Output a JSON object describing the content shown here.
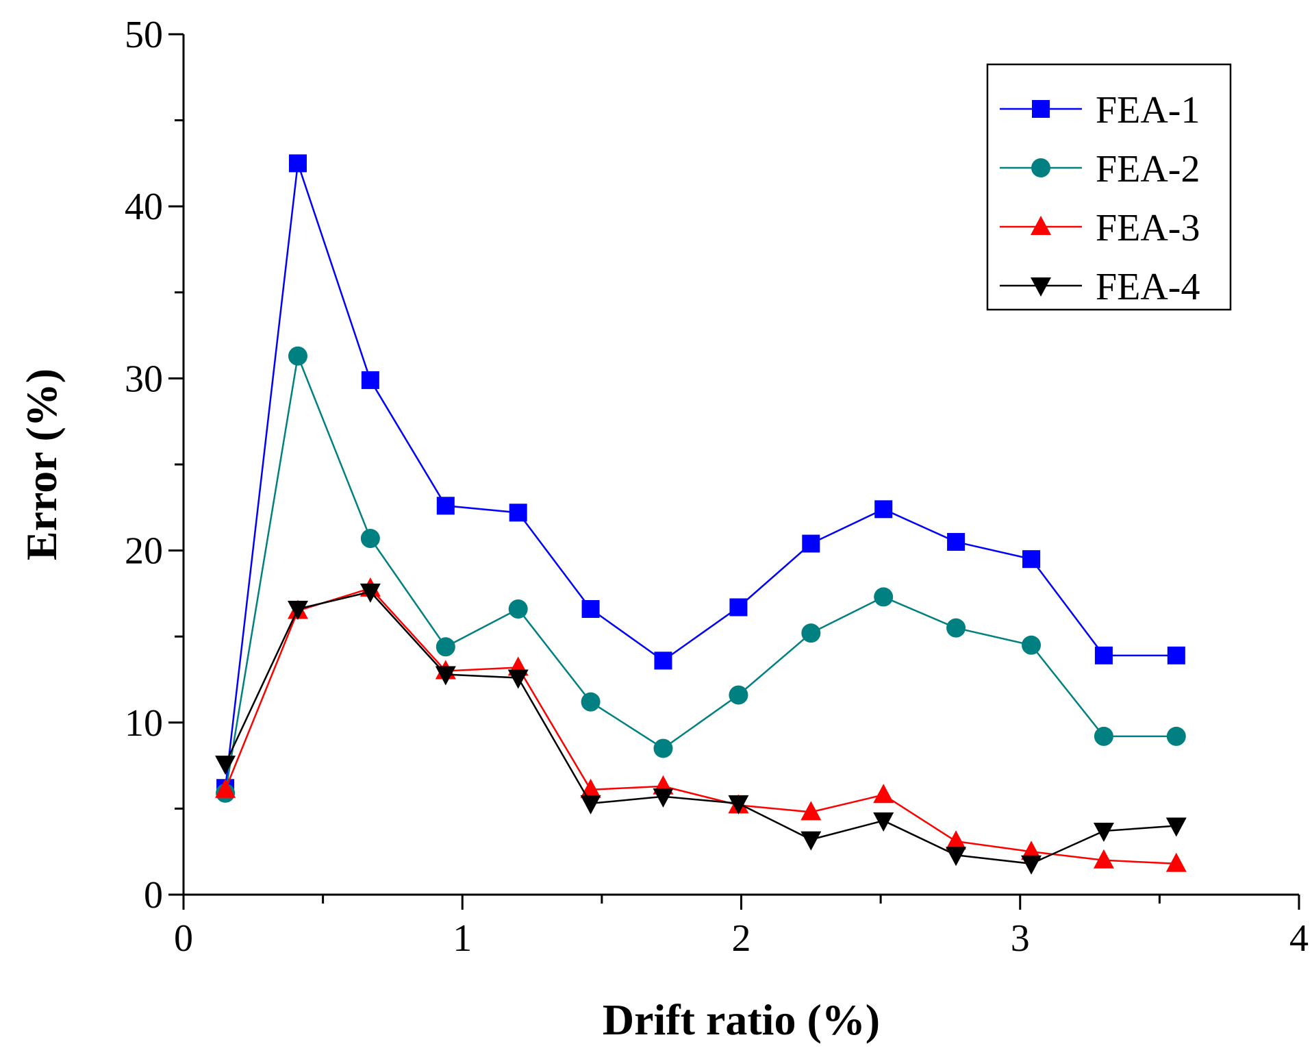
{
  "chart_data": {
    "type": "line",
    "title": "",
    "xlabel": "Drift ratio (%)",
    "ylabel": "Error (%)",
    "xlim": [
      0,
      4
    ],
    "ylim": [
      0,
      50
    ],
    "x_ticks": [
      0,
      1,
      2,
      3,
      4
    ],
    "y_ticks": [
      0,
      10,
      20,
      30,
      40,
      50
    ],
    "x_tick_labels": [
      "0",
      "1",
      "2",
      "3",
      "4"
    ],
    "y_tick_labels": [
      "0",
      "10",
      "20",
      "30",
      "40",
      "50"
    ],
    "grid": false,
    "legend_position": "top-right",
    "x": [
      0.15,
      0.41,
      0.67,
      0.94,
      1.2,
      1.46,
      1.72,
      1.99,
      2.25,
      2.51,
      2.77,
      3.04,
      3.3,
      3.56
    ],
    "series": [
      {
        "name": "FEA-1",
        "color": "#0000ff",
        "marker": "square",
        "values": [
          6.2,
          42.5,
          29.9,
          22.6,
          22.2,
          16.6,
          13.6,
          16.7,
          20.4,
          22.4,
          20.5,
          19.5,
          13.9,
          13.9
        ]
      },
      {
        "name": "FEA-2",
        "color": "#008080",
        "marker": "circle",
        "values": [
          5.9,
          31.3,
          20.7,
          14.4,
          16.6,
          11.2,
          8.5,
          11.6,
          15.2,
          17.3,
          15.5,
          14.5,
          9.2,
          9.2
        ]
      },
      {
        "name": "FEA-3",
        "color": "#ff0000",
        "marker": "triangle-up",
        "values": [
          6.1,
          16.5,
          17.8,
          13.0,
          13.2,
          6.1,
          6.3,
          5.2,
          4.8,
          5.8,
          3.1,
          2.5,
          2.0,
          1.8
        ]
      },
      {
        "name": "FEA-4",
        "color": "#000000",
        "marker": "triangle-down",
        "values": [
          7.6,
          16.6,
          17.6,
          12.8,
          12.6,
          5.3,
          5.7,
          5.3,
          3.2,
          4.3,
          2.3,
          1.8,
          3.7,
          4.0
        ]
      }
    ]
  }
}
